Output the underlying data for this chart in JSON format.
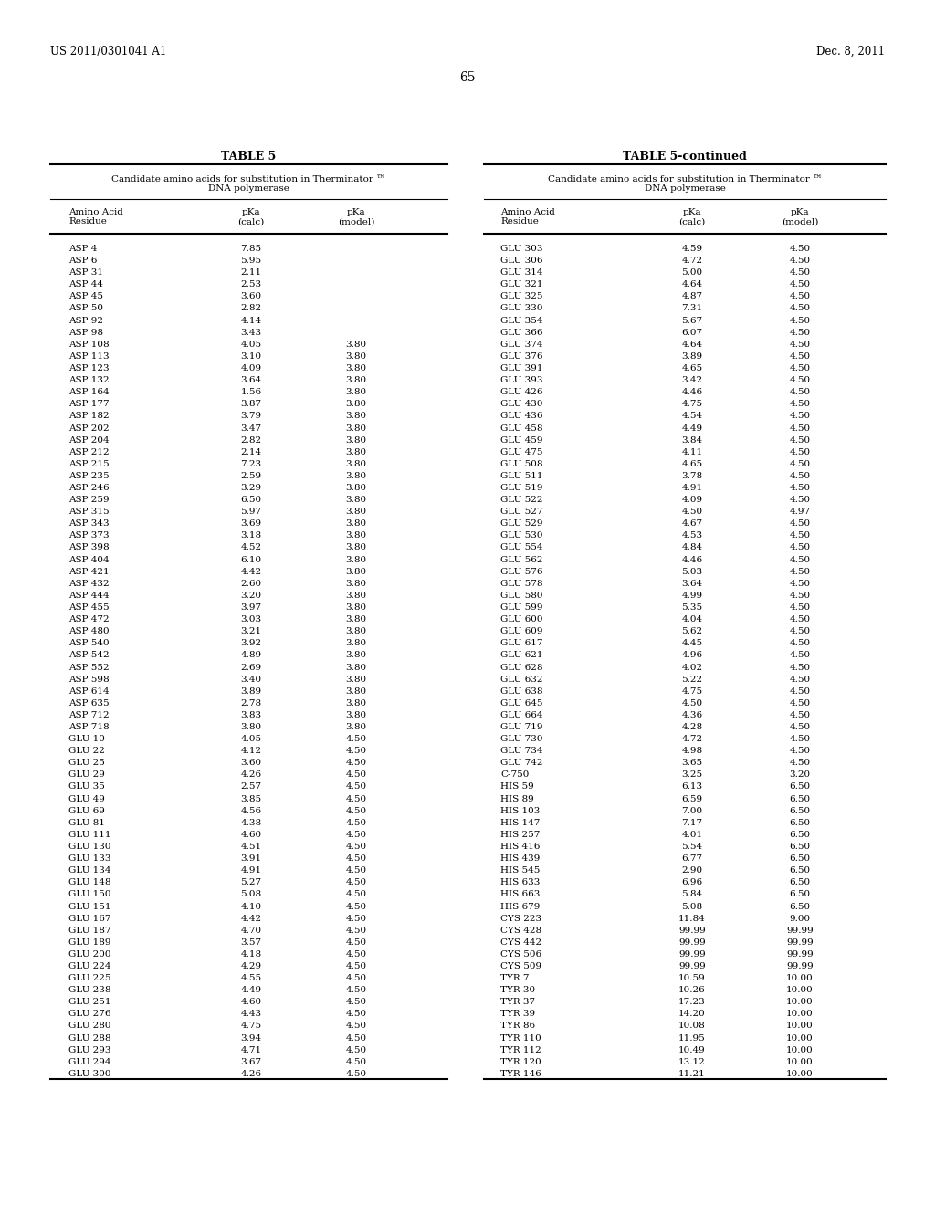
{
  "header_left": "US 2011/0301041 A1",
  "header_right": "Dec. 8, 2011",
  "page_number": "65",
  "table_title_left": "TABLE 5",
  "table_title_right": "TABLE 5-continued",
  "col_header_text": "Candidate amino acids for substitution in Therminator ™\nDNA polymerase",
  "left_data": [
    [
      "ASP 4",
      "7.85",
      ""
    ],
    [
      "ASP 6",
      "5.95",
      ""
    ],
    [
      "ASP 31",
      "2.11",
      ""
    ],
    [
      "ASP 44",
      "2.53",
      ""
    ],
    [
      "ASP 45",
      "3.60",
      ""
    ],
    [
      "ASP 50",
      "2.82",
      ""
    ],
    [
      "ASP 92",
      "4.14",
      ""
    ],
    [
      "ASP 98",
      "3.43",
      ""
    ],
    [
      "ASP 108",
      "4.05",
      "3.80"
    ],
    [
      "ASP 113",
      "3.10",
      "3.80"
    ],
    [
      "ASP 123",
      "4.09",
      "3.80"
    ],
    [
      "ASP 132",
      "3.64",
      "3.80"
    ],
    [
      "ASP 164",
      "1.56",
      "3.80"
    ],
    [
      "ASP 177",
      "3.87",
      "3.80"
    ],
    [
      "ASP 182",
      "3.79",
      "3.80"
    ],
    [
      "ASP 202",
      "3.47",
      "3.80"
    ],
    [
      "ASP 204",
      "2.82",
      "3.80"
    ],
    [
      "ASP 212",
      "2.14",
      "3.80"
    ],
    [
      "ASP 215",
      "7.23",
      "3.80"
    ],
    [
      "ASP 235",
      "2.59",
      "3.80"
    ],
    [
      "ASP 246",
      "3.29",
      "3.80"
    ],
    [
      "ASP 259",
      "6.50",
      "3.80"
    ],
    [
      "ASP 315",
      "5.97",
      "3.80"
    ],
    [
      "ASP 343",
      "3.69",
      "3.80"
    ],
    [
      "ASP 373",
      "3.18",
      "3.80"
    ],
    [
      "ASP 398",
      "4.52",
      "3.80"
    ],
    [
      "ASP 404",
      "6.10",
      "3.80"
    ],
    [
      "ASP 421",
      "4.42",
      "3.80"
    ],
    [
      "ASP 432",
      "2.60",
      "3.80"
    ],
    [
      "ASP 444",
      "3.20",
      "3.80"
    ],
    [
      "ASP 455",
      "3.97",
      "3.80"
    ],
    [
      "ASP 472",
      "3.03",
      "3.80"
    ],
    [
      "ASP 480",
      "3.21",
      "3.80"
    ],
    [
      "ASP 540",
      "3.92",
      "3.80"
    ],
    [
      "ASP 542",
      "4.89",
      "3.80"
    ],
    [
      "ASP 552",
      "2.69",
      "3.80"
    ],
    [
      "ASP 598",
      "3.40",
      "3.80"
    ],
    [
      "ASP 614",
      "3.89",
      "3.80"
    ],
    [
      "ASP 635",
      "2.78",
      "3.80"
    ],
    [
      "ASP 712",
      "3.83",
      "3.80"
    ],
    [
      "ASP 718",
      "3.80",
      "3.80"
    ],
    [
      "GLU 10",
      "4.05",
      "4.50"
    ],
    [
      "GLU 22",
      "4.12",
      "4.50"
    ],
    [
      "GLU 25",
      "3.60",
      "4.50"
    ],
    [
      "GLU 29",
      "4.26",
      "4.50"
    ],
    [
      "GLU 35",
      "2.57",
      "4.50"
    ],
    [
      "GLU 49",
      "3.85",
      "4.50"
    ],
    [
      "GLU 69",
      "4.56",
      "4.50"
    ],
    [
      "GLU 81",
      "4.38",
      "4.50"
    ],
    [
      "GLU 111",
      "4.60",
      "4.50"
    ],
    [
      "GLU 130",
      "4.51",
      "4.50"
    ],
    [
      "GLU 133",
      "3.91",
      "4.50"
    ],
    [
      "GLU 134",
      "4.91",
      "4.50"
    ],
    [
      "GLU 148",
      "5.27",
      "4.50"
    ],
    [
      "GLU 150",
      "5.08",
      "4.50"
    ],
    [
      "GLU 151",
      "4.10",
      "4.50"
    ],
    [
      "GLU 167",
      "4.42",
      "4.50"
    ],
    [
      "GLU 187",
      "4.70",
      "4.50"
    ],
    [
      "GLU 189",
      "3.57",
      "4.50"
    ],
    [
      "GLU 200",
      "4.18",
      "4.50"
    ],
    [
      "GLU 224",
      "4.29",
      "4.50"
    ],
    [
      "GLU 225",
      "4.55",
      "4.50"
    ],
    [
      "GLU 238",
      "4.49",
      "4.50"
    ],
    [
      "GLU 251",
      "4.60",
      "4.50"
    ],
    [
      "GLU 276",
      "4.43",
      "4.50"
    ],
    [
      "GLU 280",
      "4.75",
      "4.50"
    ],
    [
      "GLU 288",
      "3.94",
      "4.50"
    ],
    [
      "GLU 293",
      "4.71",
      "4.50"
    ],
    [
      "GLU 294",
      "3.67",
      "4.50"
    ],
    [
      "GLU 300",
      "4.26",
      "4.50"
    ]
  ],
  "right_data": [
    [
      "GLU 303",
      "4.59",
      "4.50"
    ],
    [
      "GLU 306",
      "4.72",
      "4.50"
    ],
    [
      "GLU 314",
      "5.00",
      "4.50"
    ],
    [
      "GLU 321",
      "4.64",
      "4.50"
    ],
    [
      "GLU 325",
      "4.87",
      "4.50"
    ],
    [
      "GLU 330",
      "7.31",
      "4.50"
    ],
    [
      "GLU 354",
      "5.67",
      "4.50"
    ],
    [
      "GLU 366",
      "6.07",
      "4.50"
    ],
    [
      "GLU 374",
      "4.64",
      "4.50"
    ],
    [
      "GLU 376",
      "3.89",
      "4.50"
    ],
    [
      "GLU 391",
      "4.65",
      "4.50"
    ],
    [
      "GLU 393",
      "3.42",
      "4.50"
    ],
    [
      "GLU 426",
      "4.46",
      "4.50"
    ],
    [
      "GLU 430",
      "4.75",
      "4.50"
    ],
    [
      "GLU 436",
      "4.54",
      "4.50"
    ],
    [
      "GLU 458",
      "4.49",
      "4.50"
    ],
    [
      "GLU 459",
      "3.84",
      "4.50"
    ],
    [
      "GLU 475",
      "4.11",
      "4.50"
    ],
    [
      "GLU 508",
      "4.65",
      "4.50"
    ],
    [
      "GLU 511",
      "3.78",
      "4.50"
    ],
    [
      "GLU 519",
      "4.91",
      "4.50"
    ],
    [
      "GLU 522",
      "4.09",
      "4.50"
    ],
    [
      "GLU 527",
      "4.50",
      "4.97"
    ],
    [
      "GLU 529",
      "4.67",
      "4.50"
    ],
    [
      "GLU 530",
      "4.53",
      "4.50"
    ],
    [
      "GLU 554",
      "4.84",
      "4.50"
    ],
    [
      "GLU 562",
      "4.46",
      "4.50"
    ],
    [
      "GLU 576",
      "5.03",
      "4.50"
    ],
    [
      "GLU 578",
      "3.64",
      "4.50"
    ],
    [
      "GLU 580",
      "4.99",
      "4.50"
    ],
    [
      "GLU 599",
      "5.35",
      "4.50"
    ],
    [
      "GLU 600",
      "4.04",
      "4.50"
    ],
    [
      "GLU 609",
      "5.62",
      "4.50"
    ],
    [
      "GLU 617",
      "4.45",
      "4.50"
    ],
    [
      "GLU 621",
      "4.96",
      "4.50"
    ],
    [
      "GLU 628",
      "4.02",
      "4.50"
    ],
    [
      "GLU 632",
      "5.22",
      "4.50"
    ],
    [
      "GLU 638",
      "4.75",
      "4.50"
    ],
    [
      "GLU 645",
      "4.50",
      "4.50"
    ],
    [
      "GLU 664",
      "4.36",
      "4.50"
    ],
    [
      "GLU 719",
      "4.28",
      "4.50"
    ],
    [
      "GLU 730",
      "4.72",
      "4.50"
    ],
    [
      "GLU 734",
      "4.98",
      "4.50"
    ],
    [
      "GLU 742",
      "3.65",
      "4.50"
    ],
    [
      "C-750",
      "3.25",
      "3.20"
    ],
    [
      "HIS 59",
      "6.13",
      "6.50"
    ],
    [
      "HIS 89",
      "6.59",
      "6.50"
    ],
    [
      "HIS 103",
      "7.00",
      "6.50"
    ],
    [
      "HIS 147",
      "7.17",
      "6.50"
    ],
    [
      "HIS 257",
      "4.01",
      "6.50"
    ],
    [
      "HIS 416",
      "5.54",
      "6.50"
    ],
    [
      "HIS 439",
      "6.77",
      "6.50"
    ],
    [
      "HIS 545",
      "2.90",
      "6.50"
    ],
    [
      "HIS 633",
      "6.96",
      "6.50"
    ],
    [
      "HIS 663",
      "5.84",
      "6.50"
    ],
    [
      "HIS 679",
      "5.08",
      "6.50"
    ],
    [
      "CYS 223",
      "11.84",
      "9.00"
    ],
    [
      "CYS 428",
      "99.99",
      "99.99"
    ],
    [
      "CYS 442",
      "99.99",
      "99.99"
    ],
    [
      "CYS 506",
      "99.99",
      "99.99"
    ],
    [
      "CYS 509",
      "99.99",
      "99.99"
    ],
    [
      "TYR 7",
      "10.59",
      "10.00"
    ],
    [
      "TYR 30",
      "10.26",
      "10.00"
    ],
    [
      "TYR 37",
      "17.23",
      "10.00"
    ],
    [
      "TYR 39",
      "14.20",
      "10.00"
    ],
    [
      "TYR 86",
      "10.08",
      "10.00"
    ],
    [
      "TYR 110",
      "11.95",
      "10.00"
    ],
    [
      "TYR 112",
      "10.49",
      "10.00"
    ],
    [
      "TYR 120",
      "13.12",
      "10.00"
    ],
    [
      "TYR 146",
      "11.21",
      "10.00"
    ]
  ],
  "bg": "#ffffff",
  "fg": "#000000"
}
